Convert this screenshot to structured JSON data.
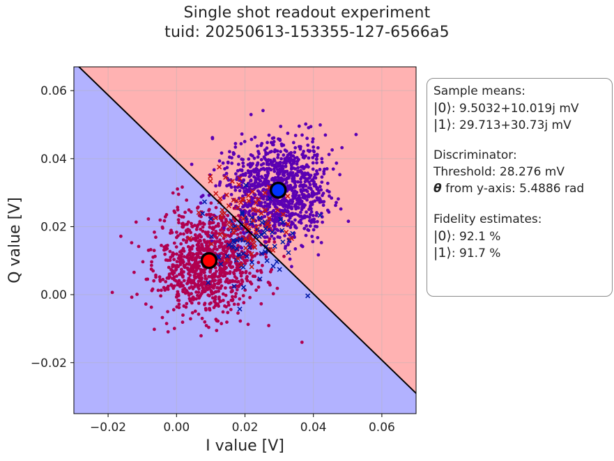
{
  "title": "Single shot readout experiment",
  "subtitle": "tuid: 20250613-153355-127-6566a5",
  "colors": {
    "state0_points": "#b0004f",
    "state1_points": "#5b00b3",
    "misassigned0": "#0018a8",
    "misassigned1": "#c81414",
    "region0": "#b2b2ff",
    "region1": "#ffb2b2",
    "mean0_fill": "#ff0000",
    "mean1_fill": "#0033ff",
    "threshold_line": "#000000"
  },
  "chart_data": {
    "type": "scatter",
    "xlabel": "I value [V]",
    "ylabel": "Q value [V]",
    "xlim": [
      -0.03,
      0.07
    ],
    "ylim": [
      -0.035,
      0.067
    ],
    "xticks": [
      "−0.02",
      "0.00",
      "0.02",
      "0.04",
      "0.06"
    ],
    "xtick_values": [
      -0.02,
      0.0,
      0.02,
      0.04,
      0.06
    ],
    "yticks": [
      "−0.02",
      "0.00",
      "0.02",
      "0.04",
      "0.06"
    ],
    "ytick_values": [
      -0.02,
      0.0,
      0.02,
      0.04,
      0.06
    ],
    "grid": true,
    "series": [
      {
        "marker": "dot",
        "color": "#b0004f",
        "distribution": "gaussian cloud",
        "approx_count": 1000,
        "mean": [
          0.0095,
          0.01
        ],
        "std": 0.0075
      },
      {
        "marker": "dot",
        "color": "#5b00b3",
        "distribution": "gaussian cloud",
        "approx_count": 1000,
        "mean": [
          0.0297,
          0.0307
        ],
        "std": 0.0075
      },
      {
        "marker": "x",
        "color": "#0018a8",
        "distribution": "gaussian cloud",
        "approx_count": 80,
        "mean": [
          0.021,
          0.018
        ],
        "std": 0.0065
      },
      {
        "marker": "x",
        "color": "#c81414",
        "distribution": "gaussian cloud",
        "approx_count": 80,
        "mean": [
          0.02,
          0.023
        ],
        "std": 0.0065
      }
    ],
    "means": [
      {
        "state": "|0⟩",
        "x": 0.0095032,
        "y": 0.010019
      },
      {
        "state": "|1⟩",
        "x": 0.029713,
        "y": 0.03073
      }
    ],
    "threshold_line": {
      "x": [
        -0.028,
        0.07
      ],
      "y": [
        0.0665,
        -0.029
      ]
    },
    "regions": [
      {
        "state": "|0⟩",
        "side": "below-left",
        "color": "#b2b2ff"
      },
      {
        "state": "|1⟩",
        "side": "above-right",
        "color": "#ffb2b2"
      }
    ]
  },
  "info": {
    "means_header": "Sample means:",
    "mean0_ket": "|0⟩",
    "mean0_value": ": 9.5032+10.019j mV",
    "mean1_ket": "|1⟩",
    "mean1_value": ": 29.713+30.73j mV",
    "disc_header": "Discriminator:",
    "threshold": "Threshold: 28.276 mV",
    "theta_symbol": "θ",
    "theta_text": " from y-axis: 5.4886 rad",
    "fidelity_header": "Fidelity estimates:",
    "fid0_ket": "|0⟩",
    "fid0_value": ": 92.1 %",
    "fid1_ket": "|1⟩",
    "fid1_value": ": 91.7 %"
  }
}
